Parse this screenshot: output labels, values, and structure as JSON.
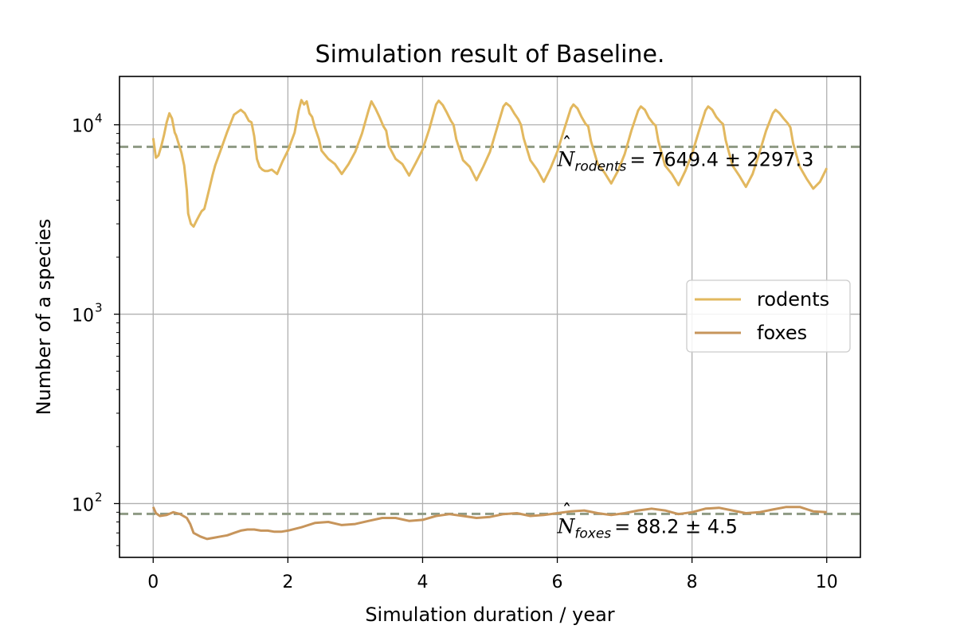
{
  "chart_data": {
    "type": "line",
    "title": "Simulation result of Baseline.",
    "xlabel": "Simulation duration / year",
    "ylabel": "Number of a species",
    "xlim": [
      -0.5,
      10.5
    ],
    "ylim": [
      52,
      18000
    ],
    "yscale": "log",
    "grid": true,
    "legend_position": "center-right",
    "x_ticks": [
      0,
      2,
      4,
      6,
      8,
      10
    ],
    "y_ticks": [
      {
        "value": 100,
        "base": "10",
        "exp": "2"
      },
      {
        "value": 1000,
        "base": "10",
        "exp": "3"
      },
      {
        "value": 10000,
        "base": "10",
        "exp": "4"
      }
    ],
    "series": [
      {
        "name": "rodents",
        "color": "#e2b85f",
        "x": [
          0,
          0.04,
          0.08,
          0.12,
          0.16,
          0.2,
          0.24,
          0.28,
          0.32,
          0.34,
          0.38,
          0.42,
          0.46,
          0.5,
          0.52,
          0.56,
          0.6,
          0.64,
          0.68,
          0.72,
          0.76,
          0.8,
          0.84,
          0.88,
          0.92,
          1.0,
          1.1,
          1.2,
          1.3,
          1.36,
          1.42,
          1.46,
          1.5,
          1.54,
          1.58,
          1.62,
          1.66,
          1.7,
          1.76,
          1.84,
          1.92,
          2.0,
          2.1,
          2.16,
          2.2,
          2.24,
          2.28,
          2.32,
          2.36,
          2.4,
          2.46,
          2.5,
          2.6,
          2.7,
          2.8,
          2.9,
          3.0,
          3.1,
          3.2,
          3.24,
          3.3,
          3.36,
          3.42,
          3.46,
          3.5,
          3.6,
          3.7,
          3.8,
          3.9,
          4.0,
          4.1,
          4.2,
          4.24,
          4.3,
          4.36,
          4.42,
          4.46,
          4.5,
          4.6,
          4.7,
          4.8,
          4.9,
          5.0,
          5.1,
          5.2,
          5.24,
          5.3,
          5.36,
          5.42,
          5.46,
          5.5,
          5.6,
          5.7,
          5.8,
          5.9,
          6.0,
          6.1,
          6.2,
          6.24,
          6.3,
          6.36,
          6.42,
          6.46,
          6.5,
          6.6,
          6.7,
          6.8,
          6.9,
          7.0,
          7.1,
          7.2,
          7.24,
          7.3,
          7.36,
          7.42,
          7.46,
          7.5,
          7.6,
          7.7,
          7.8,
          7.9,
          8.0,
          8.1,
          8.2,
          8.24,
          8.3,
          8.36,
          8.42,
          8.46,
          8.5,
          8.6,
          8.7,
          8.8,
          8.9,
          9.0,
          9.1,
          9.2,
          9.24,
          9.3,
          9.36,
          9.42,
          9.46,
          9.5,
          9.6,
          9.7,
          9.8,
          9.9,
          10.0
        ],
        "values": [
          8500,
          6700,
          6900,
          7700,
          8800,
          10300,
          11500,
          10800,
          9100,
          8800,
          7900,
          7100,
          6100,
          4500,
          3400,
          3000,
          2900,
          3100,
          3300,
          3500,
          3600,
          4100,
          4700,
          5400,
          6100,
          7300,
          9200,
          11300,
          12000,
          11500,
          10500,
          10300,
          8700,
          6600,
          6000,
          5800,
          5700,
          5700,
          5800,
          5500,
          6400,
          7300,
          9100,
          11900,
          13500,
          12800,
          13300,
          11500,
          11000,
          9700,
          8400,
          7300,
          6600,
          6200,
          5500,
          6200,
          7200,
          9000,
          12000,
          13300,
          12200,
          11000,
          9800,
          9300,
          7700,
          6600,
          6200,
          5400,
          6300,
          7400,
          9500,
          12800,
          13400,
          12700,
          11600,
          10500,
          10000,
          8400,
          6500,
          6000,
          5100,
          6000,
          7200,
          9500,
          12500,
          13000,
          12500,
          11500,
          10700,
          10000,
          8500,
          6500,
          5800,
          5000,
          5900,
          7200,
          9400,
          12200,
          12800,
          12200,
          11000,
          10100,
          9800,
          8200,
          6200,
          5600,
          4900,
          5700,
          7000,
          9300,
          11900,
          12500,
          12000,
          10900,
          10200,
          9900,
          8200,
          6100,
          5500,
          4800,
          5700,
          7000,
          9200,
          11900,
          12500,
          12000,
          11000,
          10400,
          10100,
          8300,
          6100,
          5400,
          4700,
          5500,
          7100,
          9300,
          11500,
          12000,
          11500,
          10800,
          10200,
          9700,
          8000,
          6000,
          5200,
          4600,
          5000,
          5900
        ]
      },
      {
        "name": "foxes",
        "color": "#c7955b",
        "x": [
          0,
          0.04,
          0.1,
          0.2,
          0.3,
          0.4,
          0.5,
          0.55,
          0.6,
          0.7,
          0.8,
          0.9,
          1.0,
          1.1,
          1.2,
          1.3,
          1.4,
          1.5,
          1.6,
          1.7,
          1.8,
          1.9,
          2.0,
          2.2,
          2.4,
          2.6,
          2.8,
          3.0,
          3.2,
          3.4,
          3.6,
          3.8,
          4.0,
          4.2,
          4.4,
          4.6,
          4.8,
          5.0,
          5.2,
          5.4,
          5.6,
          5.8,
          6.0,
          6.2,
          6.4,
          6.6,
          6.8,
          7.0,
          7.2,
          7.4,
          7.6,
          7.8,
          8.0,
          8.2,
          8.4,
          8.6,
          8.8,
          9.0,
          9.2,
          9.4,
          9.6,
          9.8,
          10.0
        ],
        "values": [
          96,
          89,
          86,
          87,
          90,
          88,
          84,
          78,
          70,
          67,
          65,
          66,
          67,
          68,
          70,
          72,
          73,
          73,
          72,
          72,
          71,
          71,
          72,
          75,
          79,
          80,
          77,
          78,
          81,
          84,
          84,
          81,
          82,
          86,
          88,
          86,
          84,
          85,
          88,
          89,
          86,
          87,
          89,
          91,
          92,
          89,
          87,
          89,
          92,
          94,
          92,
          88,
          90,
          94,
          95,
          92,
          89,
          90,
          93,
          96,
          96,
          91,
          90
        ]
      }
    ],
    "reference_lines": [
      {
        "series": "rodents",
        "value": 7649.4,
        "color": "#8e9a84",
        "symbol": "N",
        "subscript": "rodents",
        "text": "= 7649.4 ± 2297.3",
        "text_x": 6.0
      },
      {
        "series": "foxes",
        "value": 88.2,
        "color": "#8e9a84",
        "symbol": "N",
        "subscript": "foxes",
        "text": "= 88.2 ± 4.5",
        "text_x": 6.0
      }
    ]
  }
}
